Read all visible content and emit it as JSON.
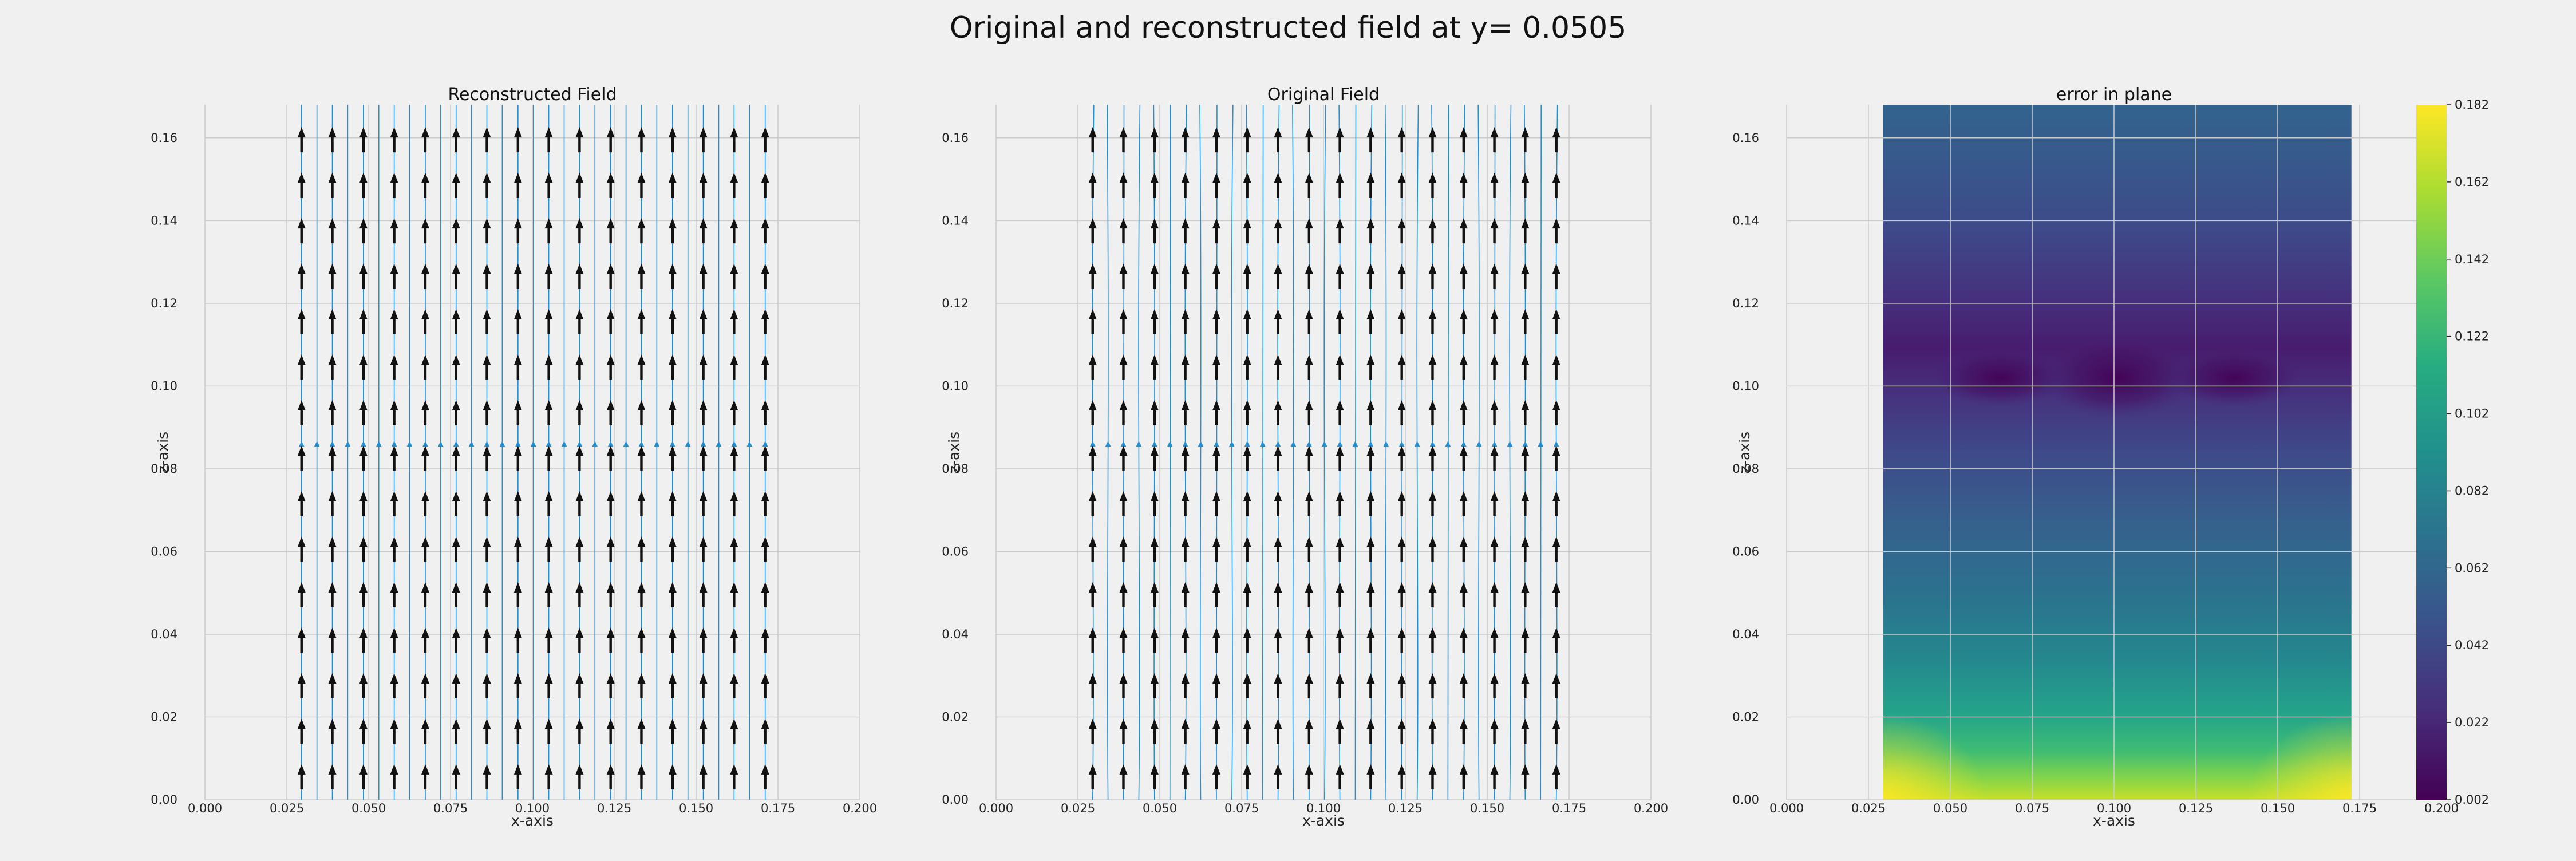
{
  "figure_title": "Original and reconstructed field at y= 0.0505",
  "colors": {
    "background": "#f0f0f0",
    "grid": "#cbcbcb",
    "streamline": "#1f8fd6",
    "arrow": "#111111",
    "colormap": "viridis"
  },
  "chart_data": [
    {
      "type": "quiver+streamplot",
      "title": "Reconstructed Field",
      "xlabel": "x-axis",
      "ylabel": "z-axis",
      "xlim": [
        0.0,
        0.2
      ],
      "ylim": [
        0.0,
        0.168
      ],
      "xticks": [
        "0.000",
        "0.025",
        "0.050",
        "0.075",
        "0.100",
        "0.125",
        "0.150",
        "0.175",
        "0.200"
      ],
      "yticks": [
        "0.00",
        "0.02",
        "0.04",
        "0.06",
        "0.08",
        "0.10",
        "0.12",
        "0.14",
        "0.16"
      ],
      "grid": true,
      "arrow_grid": {
        "x": [
          0.0295,
          0.0389,
          0.0484,
          0.0578,
          0.0673,
          0.0767,
          0.0861,
          0.0956,
          0.105,
          0.1144,
          0.1239,
          0.1333,
          0.1428,
          0.1522,
          0.1616,
          0.1711
        ],
        "z": [
          0.0025,
          0.0135,
          0.0245,
          0.0355,
          0.0465,
          0.0575,
          0.0685,
          0.0795,
          0.0905,
          0.1015,
          0.1125,
          0.1235,
          0.1345,
          0.1455,
          0.1565
        ],
        "direction": "+z"
      },
      "streamlines_x": [
        0.0295,
        0.0342,
        0.0389,
        0.0436,
        0.0484,
        0.0531,
        0.0578,
        0.0625,
        0.0673,
        0.072,
        0.0767,
        0.0814,
        0.0861,
        0.0908,
        0.0956,
        0.1003,
        0.105,
        0.1097,
        0.1144,
        0.1191,
        0.1239,
        0.1286,
        0.1333,
        0.138,
        0.1428,
        0.1475,
        0.1522,
        0.1569,
        0.1616,
        0.1663,
        0.1711
      ],
      "streamlines_wavy": false
    },
    {
      "type": "quiver+streamplot",
      "title": "Original Field",
      "xlabel": "x-axis",
      "ylabel": "z-axis",
      "xlim": [
        0.0,
        0.2
      ],
      "ylim": [
        0.0,
        0.168
      ],
      "xticks": [
        "0.000",
        "0.025",
        "0.050",
        "0.075",
        "0.100",
        "0.125",
        "0.150",
        "0.175",
        "0.200"
      ],
      "yticks": [
        "0.00",
        "0.02",
        "0.04",
        "0.06",
        "0.08",
        "0.10",
        "0.12",
        "0.14",
        "0.16"
      ],
      "grid": true,
      "arrow_grid": {
        "x": [
          0.0295,
          0.0389,
          0.0484,
          0.0578,
          0.0673,
          0.0767,
          0.0861,
          0.0956,
          0.105,
          0.1144,
          0.1239,
          0.1333,
          0.1428,
          0.1522,
          0.1616,
          0.1711
        ],
        "z": [
          0.0025,
          0.0135,
          0.0245,
          0.0355,
          0.0465,
          0.0575,
          0.0685,
          0.0795,
          0.0905,
          0.1015,
          0.1125,
          0.1235,
          0.1345,
          0.1455,
          0.1565
        ],
        "direction": "+z"
      },
      "streamlines_x": [
        0.0295,
        0.0342,
        0.0389,
        0.0436,
        0.0484,
        0.0531,
        0.0578,
        0.0625,
        0.0673,
        0.072,
        0.0767,
        0.0814,
        0.0861,
        0.0908,
        0.0956,
        0.1003,
        0.105,
        0.1097,
        0.1144,
        0.1191,
        0.1239,
        0.1286,
        0.1333,
        0.138,
        0.1428,
        0.1475,
        0.1522,
        0.1569,
        0.1616,
        0.1663,
        0.1711
      ],
      "streamlines_wavy": true
    },
    {
      "type": "heatmap",
      "title": "error in plane",
      "xlabel": "x-axis",
      "ylabel": "z-axis",
      "xlim": [
        0.0,
        0.2
      ],
      "ylim": [
        0.0,
        0.168
      ],
      "data_extent_x": [
        0.0295,
        0.1725
      ],
      "xticks": [
        "0.000",
        "0.025",
        "0.050",
        "0.075",
        "0.100",
        "0.125",
        "0.150",
        "0.175",
        "0.200"
      ],
      "yticks": [
        "0.00",
        "0.02",
        "0.04",
        "0.06",
        "0.08",
        "0.10",
        "0.12",
        "0.14",
        "0.16"
      ],
      "grid": true,
      "colormap": "viridis",
      "colorbar": {
        "range": [
          0.002,
          0.182
        ],
        "ticks": [
          "0.002",
          "0.022",
          "0.042",
          "0.062",
          "0.082",
          "0.102",
          "0.122",
          "0.142",
          "0.162",
          "0.182"
        ]
      }
    }
  ]
}
